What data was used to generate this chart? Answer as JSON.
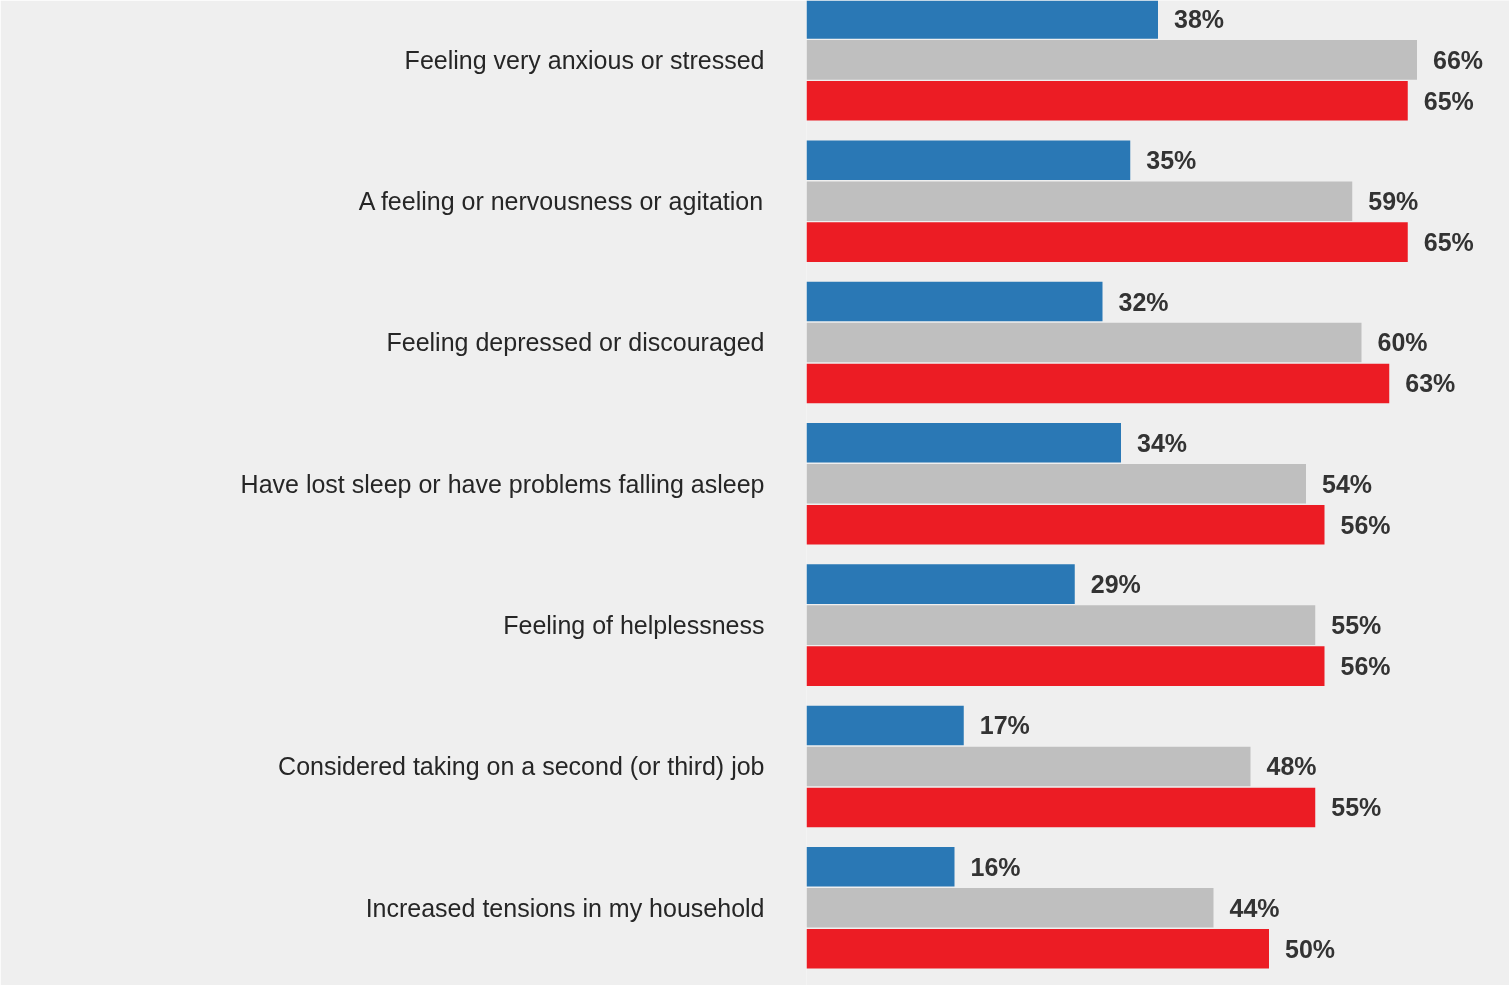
{
  "chart_data": {
    "type": "bar",
    "orientation": "horizontal",
    "categories": [
      "Feeling very anxious or stressed",
      "A feeling or nervousness or agitation",
      "Feeling depressed or discouraged",
      "Have lost sleep or have problems falling asleep",
      "Feeling of helplessness",
      "Considered taking on a second (or third) job",
      "Increased tensions in my household"
    ],
    "series": [
      {
        "color": "#2a78b5",
        "values": [
          38,
          35,
          32,
          34,
          29,
          17,
          16
        ],
        "value_labels": [
          "38%",
          "35%",
          "32%",
          "34%",
          "29%",
          "17%",
          "16%"
        ]
      },
      {
        "color": "#bfbfbf",
        "values": [
          66,
          59,
          60,
          54,
          55,
          48,
          44
        ],
        "value_labels": [
          "66%",
          "59%",
          "60%",
          "54%",
          "55%",
          "48%",
          "44%"
        ]
      },
      {
        "color": "#ec1c24",
        "values": [
          65,
          65,
          63,
          56,
          56,
          55,
          50
        ],
        "value_labels": [
          "65%",
          "65%",
          "63%",
          "56%",
          "56%",
          "55%",
          "50%"
        ]
      }
    ],
    "xlim": [
      0,
      76
    ],
    "tick_labels": "y",
    "grid": false
  }
}
